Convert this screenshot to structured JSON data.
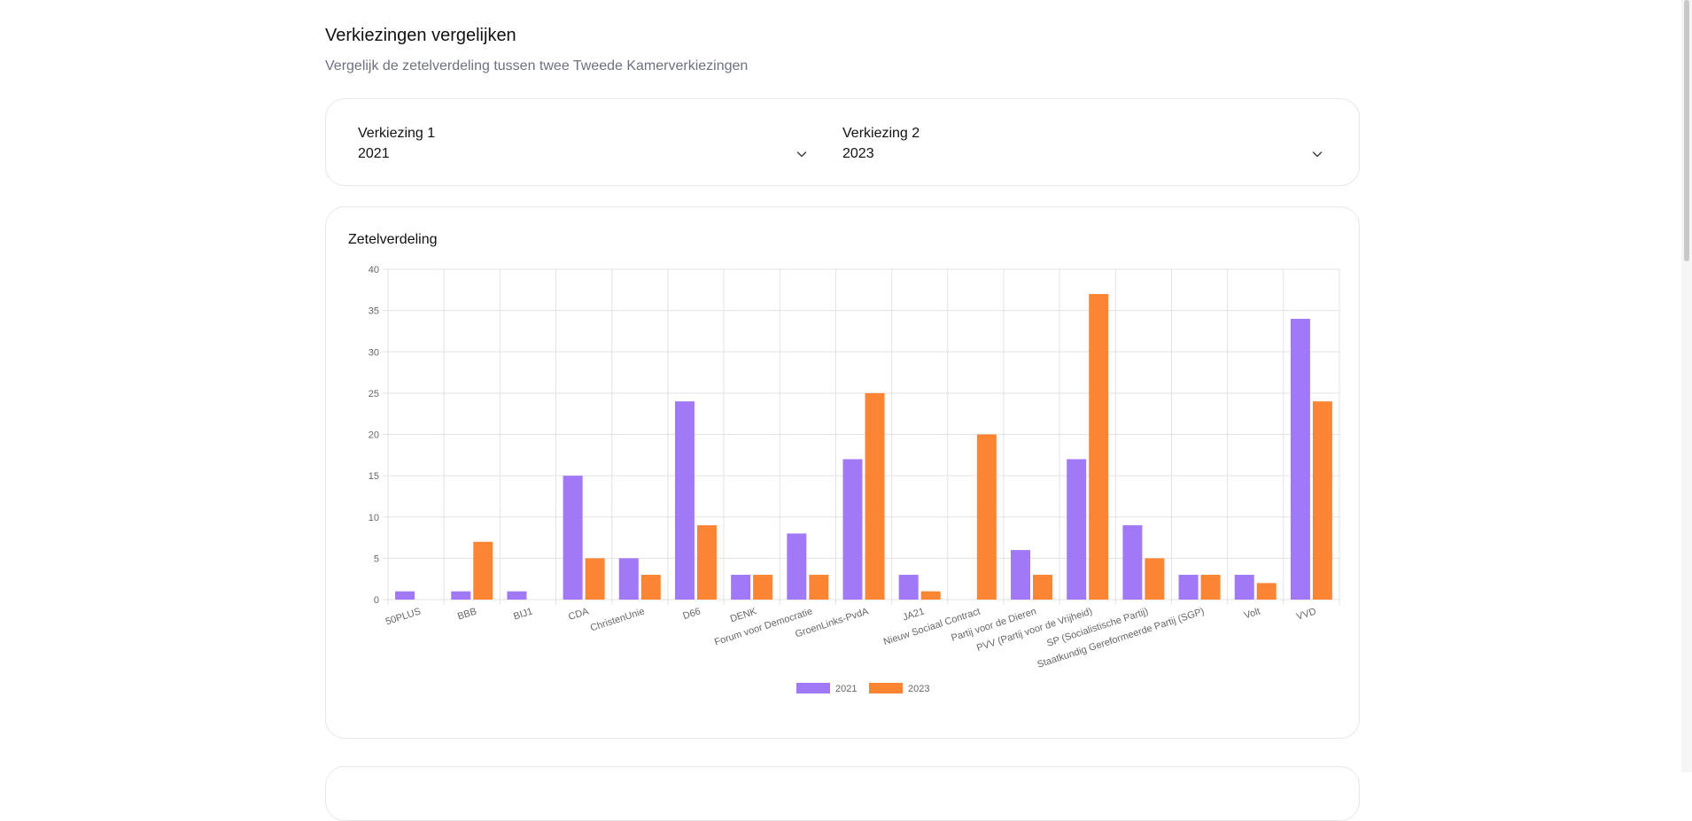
{
  "page": {
    "title": "Verkiezingen vergelijken",
    "subtitle": "Vergelijk de zetelverdeling tussen twee Tweede Kamerverkiezingen"
  },
  "selectors": {
    "election1": {
      "label": "Verkiezing 1",
      "value": "2021"
    },
    "election2": {
      "label": "Verkiezing 2",
      "value": "2023"
    }
  },
  "chart_card": {
    "title": "Zetelverdeling"
  },
  "icons": {
    "chevron": "chevron-down-icon"
  },
  "chart_data": {
    "type": "bar",
    "title": "Zetelverdeling",
    "xlabel": "",
    "ylabel": "",
    "ylim": [
      0,
      40
    ],
    "yticks": [
      0,
      5,
      10,
      15,
      20,
      25,
      30,
      35,
      40
    ],
    "grid": true,
    "legend_position": "bottom",
    "categories": [
      "50PLUS",
      "BBB",
      "BIJ1",
      "CDA",
      "ChristenUnie",
      "D66",
      "DENK",
      "Forum voor Democratie",
      "GroenLinks-PvdA",
      "JA21",
      "Nieuw Sociaal Contract",
      "Partij voor de Dieren",
      "PVV (Partij voor de Vrijheid)",
      "SP (Socialistische Partij)",
      "Staatkundig Gereformeerde Partij (SGP)",
      "Volt",
      "VVD"
    ],
    "series": [
      {
        "name": "2021",
        "color": "#a178f7",
        "values": [
          1,
          1,
          1,
          15,
          5,
          24,
          3,
          8,
          17,
          3,
          0,
          6,
          17,
          9,
          3,
          3,
          34
        ]
      },
      {
        "name": "2023",
        "color": "#fb8532",
        "values": [
          0,
          7,
          0,
          5,
          3,
          9,
          3,
          3,
          25,
          1,
          20,
          3,
          37,
          5,
          3,
          2,
          24
        ]
      }
    ]
  }
}
